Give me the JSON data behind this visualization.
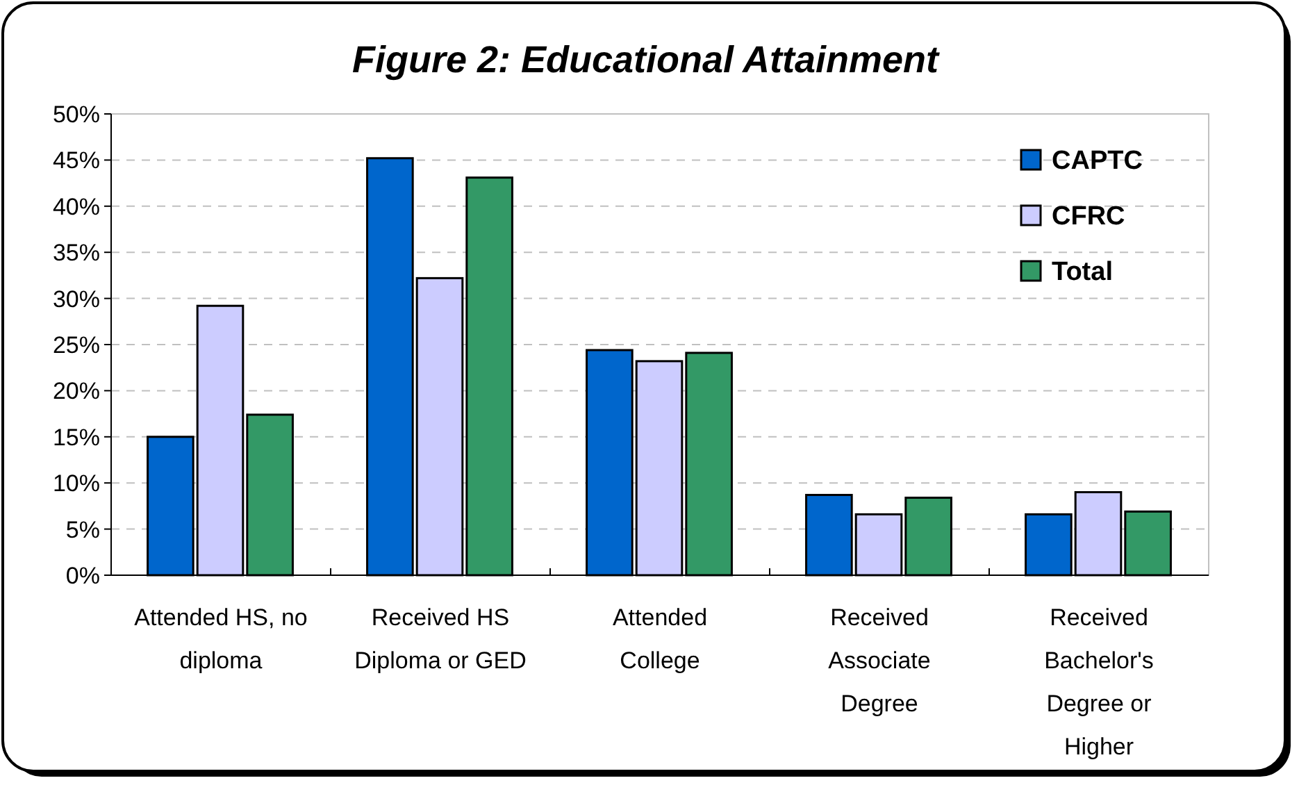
{
  "chart_data": {
    "type": "bar",
    "title": "Figure 2: Educational Attainment",
    "categories": [
      "Attended HS, no diploma",
      "Received HS Diploma or GED",
      "Attended College",
      "Received Associate Degree",
      "Received Bachelor's Degree or Higher"
    ],
    "series": [
      {
        "name": "CAPTC",
        "color": "#0066cc",
        "values": [
          15.0,
          45.2,
          24.4,
          8.7,
          6.6
        ]
      },
      {
        "name": "CFRC",
        "color": "#ccccff",
        "values": [
          29.2,
          32.2,
          23.2,
          6.6,
          9.0
        ]
      },
      {
        "name": "Total",
        "color": "#339966",
        "values": [
          17.4,
          43.1,
          24.1,
          8.4,
          6.9
        ]
      }
    ],
    "ylim": [
      0,
      50
    ],
    "yticks": [
      {
        "value": 0,
        "label": "0%"
      },
      {
        "value": 5,
        "label": "5%"
      },
      {
        "value": 10,
        "label": "10%"
      },
      {
        "value": 15,
        "label": "15%"
      },
      {
        "value": 20,
        "label": "20%"
      },
      {
        "value": 25,
        "label": "25%"
      },
      {
        "value": 30,
        "label": "30%"
      },
      {
        "value": 35,
        "label": "35%"
      },
      {
        "value": 40,
        "label": "40%"
      },
      {
        "value": 45,
        "label": "45%"
      },
      {
        "value": 50,
        "label": "50%"
      }
    ],
    "grid": "y",
    "legend": "top right"
  }
}
